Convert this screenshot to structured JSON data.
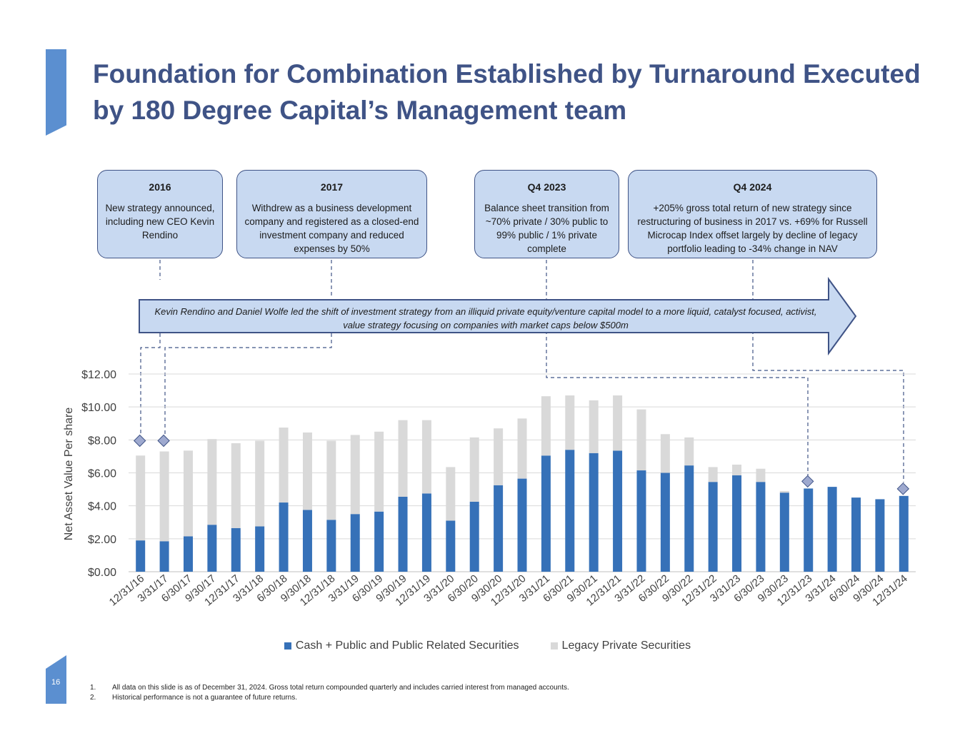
{
  "page": {
    "title": "Foundation for Combination Established by Turnaround Executed by 180 Degree Capital’s Management team",
    "page_number": "16",
    "accent_color": "#5b8fd0",
    "title_color": "#3f5386"
  },
  "callouts": [
    {
      "heading": "2016",
      "body": "New strategy announced, including new CEO Kevin Rendino"
    },
    {
      "heading": "2017",
      "body": "Withdrew as a business development company and registered as a closed-end investment company and reduced expenses by 50%"
    },
    {
      "heading": "Q4 2023",
      "body": "Balance sheet transition from ~70% private / 30% public to 99% public / 1% private complete"
    },
    {
      "heading": "Q4 2024",
      "body": "+205% gross total return of new strategy since restructuring of business in 2017 vs. +69% for Russell Microcap Index offset largely by decline of legacy portfolio leading to -34% change in NAV"
    }
  ],
  "arrow_banner": {
    "text": "Kevin Rendino and Daniel Wolfe led the shift of investment strategy from an illiquid private equity/venture capital model to a more liquid, catalyst focused, activist, value strategy focusing on companies with market caps below $500m"
  },
  "chart_data": {
    "type": "bar",
    "stacked": true,
    "title": "",
    "xlabel": "",
    "ylabel": "Net Asset Value Per share",
    "ylim": [
      0,
      12
    ],
    "yticks": [
      "$0.00",
      "$2.00",
      "$4.00",
      "$6.00",
      "$8.00",
      "$10.00",
      "$12.00"
    ],
    "grid": true,
    "legend_position": "bottom",
    "categories": [
      "12/31/16",
      "3/31/17",
      "6/30/17",
      "9/30/17",
      "12/31/17",
      "3/31/18",
      "6/30/18",
      "9/30/18",
      "12/31/18",
      "3/31/19",
      "6/30/19",
      "9/30/19",
      "12/31/19",
      "3/31/20",
      "6/30/20",
      "9/30/20",
      "12/31/20",
      "3/31/21",
      "6/30/21",
      "9/30/21",
      "12/31/21",
      "3/31/22",
      "6/30/22",
      "9/30/22",
      "12/31/22",
      "3/31/23",
      "6/30/23",
      "9/30/23",
      "12/31/23",
      "3/31/24",
      "6/30/24",
      "9/30/24",
      "12/31/24"
    ],
    "series": [
      {
        "name": "Cash + Public and Public Related Securities",
        "color": "#3671b8",
        "values": [
          1.9,
          1.85,
          2.15,
          2.85,
          2.65,
          2.75,
          4.2,
          3.75,
          3.15,
          3.5,
          3.65,
          4.55,
          4.75,
          3.1,
          4.25,
          5.25,
          5.65,
          7.05,
          7.4,
          7.2,
          7.35,
          6.15,
          6.0,
          6.45,
          5.45,
          5.85,
          5.45,
          4.8,
          5.05,
          5.15,
          4.5,
          4.4,
          4.6
        ]
      },
      {
        "name": "Legacy Private Securities",
        "color": "#d9d9d9",
        "values": [
          5.15,
          5.45,
          5.2,
          5.2,
          5.15,
          5.2,
          4.55,
          4.7,
          4.8,
          4.8,
          4.85,
          4.65,
          4.45,
          3.25,
          3.9,
          3.45,
          3.65,
          3.6,
          3.3,
          3.2,
          3.35,
          3.7,
          2.35,
          1.7,
          0.9,
          0.65,
          0.8,
          0.1,
          0.0,
          0.0,
          0.0,
          0.0,
          0.0
        ]
      }
    ],
    "markers": [
      "12/31/16",
      "3/31/17",
      "12/31/23",
      "12/31/24"
    ],
    "marker_color": "#9ea9cf"
  },
  "footnotes": [
    {
      "num": "1.",
      "text": "All data on this slide is as of December 31, 2024.  Gross total return compounded quarterly and includes carried interest from managed accounts."
    },
    {
      "num": "2.",
      "text": "Historical performance is not a guarantee of future returns."
    }
  ]
}
